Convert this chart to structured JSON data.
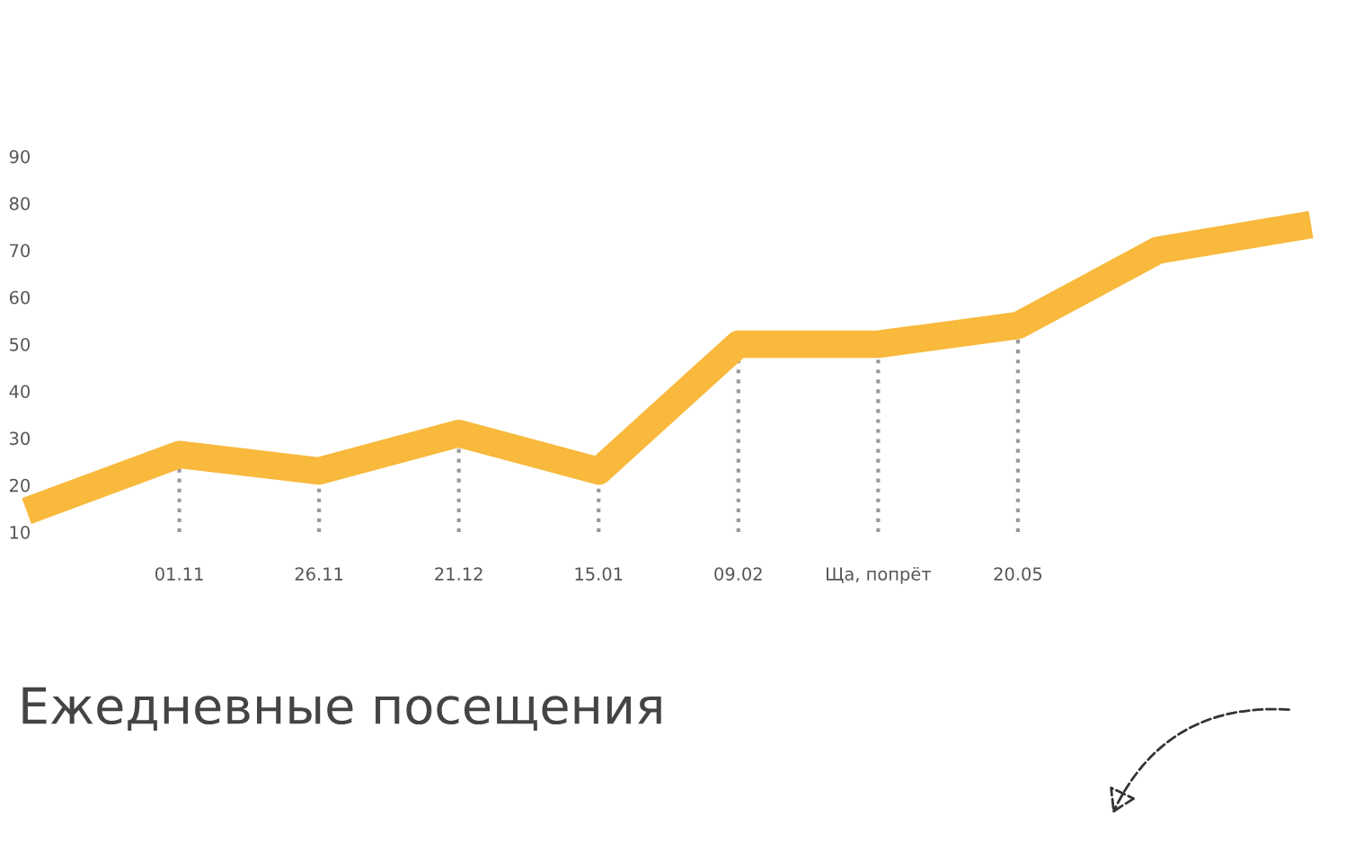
{
  "chart_data": {
    "type": "line",
    "title": "Ежедневные посещения",
    "categories": [
      null,
      "01.11",
      "26.11",
      "21.12",
      "15.01",
      "09.02",
      "Ща, попрёт",
      "20.05",
      null,
      null
    ],
    "series": [
      {
        "color": "#f8b93c",
        "values": [
          15.5,
          26.5,
          23,
          31,
          23,
          50,
          50,
          54,
          70,
          75
        ]
      }
    ],
    "ylim": [
      10,
      90
    ],
    "yticks": [
      10,
      20,
      30,
      40,
      50,
      60,
      70,
      80,
      90
    ],
    "grid": false,
    "line_style": "solid",
    "ref_lines": [
      {
        "axis": "x",
        "value": "01.11",
        "line_style": "dotted",
        "color": "#999999"
      },
      {
        "axis": "x",
        "value": "26.11",
        "line_style": "dotted",
        "color": "#999999"
      },
      {
        "axis": "x",
        "value": "21.12",
        "line_style": "dotted",
        "color": "#999999"
      },
      {
        "axis": "x",
        "value": "15.01",
        "line_style": "dotted",
        "color": "#999999"
      },
      {
        "axis": "x",
        "value": "09.02",
        "line_style": "dotted",
        "color": "#999999"
      },
      {
        "axis": "x",
        "value": "Ща, попрёт",
        "line_style": "dotted",
        "color": "#999999"
      },
      {
        "axis": "x",
        "value": "20.05",
        "line_style": "dotted",
        "color": "#999999"
      }
    ]
  }
}
